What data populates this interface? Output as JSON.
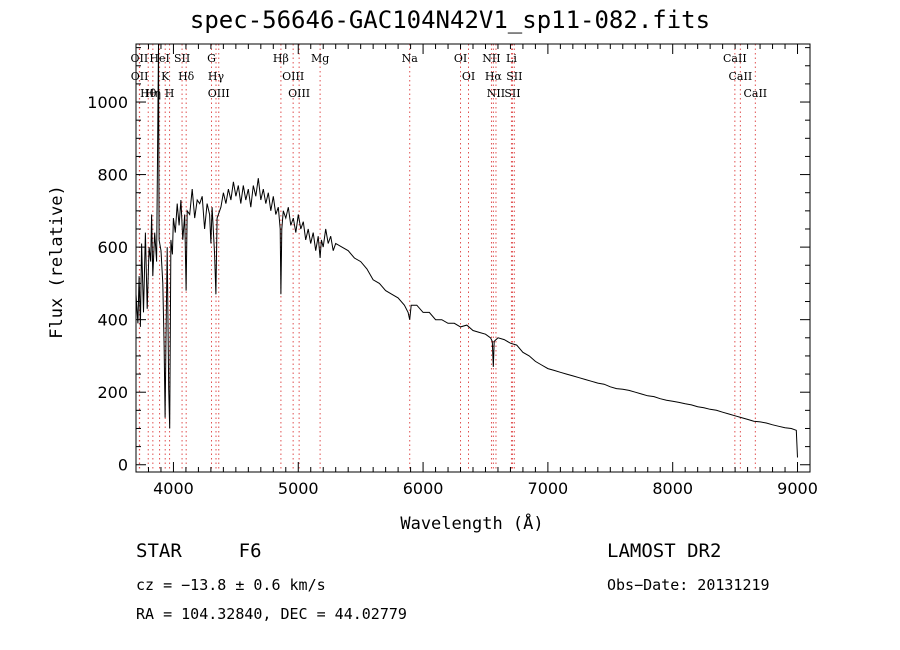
{
  "title": "spec-56646-GAC104N42V1_sp11-082.fits",
  "chart_data": {
    "type": "line",
    "xlabel": "Wavelength (Å)",
    "ylabel": "Flux (relative)",
    "xlim": [
      3700,
      9100
    ],
    "ylim": [
      -20,
      1160
    ],
    "xticks": [
      4000,
      5000,
      6000,
      7000,
      8000,
      9000
    ],
    "yticks": [
      0,
      200,
      400,
      600,
      800,
      1000
    ],
    "grid": false,
    "series": [
      {
        "points": [
          [
            3700,
            470
          ],
          [
            3715,
            390
          ],
          [
            3725,
            520
          ],
          [
            3735,
            380
          ],
          [
            3745,
            610
          ],
          [
            3760,
            420
          ],
          [
            3775,
            640
          ],
          [
            3790,
            430
          ],
          [
            3805,
            600
          ],
          [
            3818,
            560
          ],
          [
            3825,
            690
          ],
          [
            3835,
            520
          ],
          [
            3850,
            640
          ],
          [
            3865,
            560
          ],
          [
            3880,
            1160
          ],
          [
            3885,
            620
          ],
          [
            3900,
            590
          ],
          [
            3915,
            500
          ],
          [
            3925,
            330
          ],
          [
            3933,
            130
          ],
          [
            3940,
            350
          ],
          [
            3950,
            600
          ],
          [
            3962,
            210
          ],
          [
            3970,
            100
          ],
          [
            3980,
            620
          ],
          [
            3992,
            580
          ],
          [
            4000,
            680
          ],
          [
            4015,
            640
          ],
          [
            4030,
            720
          ],
          [
            4045,
            660
          ],
          [
            4060,
            730
          ],
          [
            4075,
            620
          ],
          [
            4090,
            690
          ],
          [
            4101,
            480
          ],
          [
            4110,
            700
          ],
          [
            4130,
            690
          ],
          [
            4150,
            760
          ],
          [
            4170,
            680
          ],
          [
            4190,
            730
          ],
          [
            4210,
            720
          ],
          [
            4230,
            740
          ],
          [
            4250,
            650
          ],
          [
            4270,
            720
          ],
          [
            4290,
            690
          ],
          [
            4300,
            610
          ],
          [
            4310,
            710
          ],
          [
            4330,
            580
          ],
          [
            4340,
            470
          ],
          [
            4350,
            680
          ],
          [
            4380,
            710
          ],
          [
            4400,
            750
          ],
          [
            4420,
            720
          ],
          [
            4440,
            760
          ],
          [
            4460,
            730
          ],
          [
            4480,
            780
          ],
          [
            4500,
            740
          ],
          [
            4520,
            770
          ],
          [
            4540,
            720
          ],
          [
            4560,
            770
          ],
          [
            4580,
            730
          ],
          [
            4600,
            760
          ],
          [
            4620,
            710
          ],
          [
            4640,
            770
          ],
          [
            4660,
            740
          ],
          [
            4680,
            790
          ],
          [
            4700,
            730
          ],
          [
            4720,
            760
          ],
          [
            4740,
            720
          ],
          [
            4760,
            750
          ],
          [
            4780,
            700
          ],
          [
            4800,
            740
          ],
          [
            4820,
            690
          ],
          [
            4840,
            710
          ],
          [
            4855,
            650
          ],
          [
            4861,
            470
          ],
          [
            4868,
            650
          ],
          [
            4880,
            700
          ],
          [
            4900,
            680
          ],
          [
            4920,
            710
          ],
          [
            4940,
            660
          ],
          [
            4960,
            680
          ],
          [
            4980,
            640
          ],
          [
            5000,
            690
          ],
          [
            5020,
            650
          ],
          [
            5040,
            670
          ],
          [
            5060,
            620
          ],
          [
            5080,
            650
          ],
          [
            5100,
            610
          ],
          [
            5120,
            640
          ],
          [
            5140,
            590
          ],
          [
            5160,
            630
          ],
          [
            5175,
            570
          ],
          [
            5185,
            620
          ],
          [
            5200,
            600
          ],
          [
            5220,
            650
          ],
          [
            5240,
            610
          ],
          [
            5260,
            630
          ],
          [
            5280,
            590
          ],
          [
            5300,
            610
          ],
          [
            5350,
            600
          ],
          [
            5400,
            590
          ],
          [
            5450,
            570
          ],
          [
            5500,
            560
          ],
          [
            5550,
            540
          ],
          [
            5600,
            510
          ],
          [
            5650,
            500
          ],
          [
            5700,
            480
          ],
          [
            5750,
            470
          ],
          [
            5800,
            460
          ],
          [
            5850,
            440
          ],
          [
            5880,
            420
          ],
          [
            5893,
            400
          ],
          [
            5905,
            440
          ],
          [
            5950,
            440
          ],
          [
            6000,
            420
          ],
          [
            6050,
            420
          ],
          [
            6100,
            400
          ],
          [
            6150,
            400
          ],
          [
            6200,
            390
          ],
          [
            6250,
            390
          ],
          [
            6300,
            380
          ],
          [
            6350,
            385
          ],
          [
            6400,
            370
          ],
          [
            6450,
            365
          ],
          [
            6500,
            360
          ],
          [
            6540,
            350
          ],
          [
            6555,
            340
          ],
          [
            6563,
            270
          ],
          [
            6570,
            340
          ],
          [
            6600,
            350
          ],
          [
            6650,
            345
          ],
          [
            6700,
            335
          ],
          [
            6750,
            330
          ],
          [
            6800,
            310
          ],
          [
            6850,
            300
          ],
          [
            6900,
            285
          ],
          [
            6950,
            275
          ],
          [
            7000,
            265
          ],
          [
            7050,
            260
          ],
          [
            7100,
            255
          ],
          [
            7150,
            250
          ],
          [
            7200,
            245
          ],
          [
            7250,
            240
          ],
          [
            7300,
            235
          ],
          [
            7350,
            230
          ],
          [
            7400,
            225
          ],
          [
            7450,
            222
          ],
          [
            7500,
            215
          ],
          [
            7550,
            210
          ],
          [
            7600,
            208
          ],
          [
            7650,
            205
          ],
          [
            7700,
            200
          ],
          [
            7750,
            195
          ],
          [
            7800,
            190
          ],
          [
            7850,
            188
          ],
          [
            7900,
            182
          ],
          [
            7950,
            178
          ],
          [
            8000,
            175
          ],
          [
            8050,
            172
          ],
          [
            8100,
            168
          ],
          [
            8150,
            165
          ],
          [
            8200,
            160
          ],
          [
            8250,
            157
          ],
          [
            8300,
            153
          ],
          [
            8350,
            150
          ],
          [
            8400,
            145
          ],
          [
            8450,
            140
          ],
          [
            8500,
            135
          ],
          [
            8550,
            130
          ],
          [
            8600,
            125
          ],
          [
            8650,
            120
          ],
          [
            8700,
            118
          ],
          [
            8750,
            115
          ],
          [
            8800,
            110
          ],
          [
            8850,
            106
          ],
          [
            8900,
            102
          ],
          [
            8950,
            100
          ],
          [
            8990,
            95
          ],
          [
            9000,
            20
          ]
        ]
      }
    ],
    "lines": [
      {
        "labels": [
          "Hθ"
        ],
        "x": 3798
      },
      {
        "labels": [
          "OII"
        ],
        "x": 3727
      },
      {
        "labels": [
          "OII"
        ],
        "x": 3729
      },
      {
        "labels": [
          "Hη"
        ],
        "x": 3835
      },
      {
        "labels": [
          "K"
        ],
        "x": 3934
      },
      {
        "labels": [
          "HeI"
        ],
        "x": 3889
      },
      {
        "labels": [
          "H"
        ],
        "x": 3969
      },
      {
        "labels": [
          "Hδ"
        ],
        "x": 4102
      },
      {
        "labels": [
          "SII"
        ],
        "x": 4069
      },
      {
        "labels": [
          "G"
        ],
        "x": 4305
      },
      {
        "labels": [
          "OIII"
        ],
        "x": 4363
      },
      {
        "labels": [
          "Hγ"
        ],
        "x": 4341
      },
      {
        "labels": [
          "Hβ"
        ],
        "x": 4861
      },
      {
        "labels": [
          "OIII"
        ],
        "x": 5007
      },
      {
        "labels": [
          "OIII"
        ],
        "x": 4959
      },
      {
        "labels": [
          "Mg"
        ],
        "x": 5175
      },
      {
        "labels": [
          "Na"
        ],
        "x": 5893
      },
      {
        "labels": [
          "OI"
        ],
        "x": 6300
      },
      {
        "labels": [
          "OI"
        ],
        "x": 6364
      },
      {
        "labels": [
          "Hα"
        ],
        "x": 6563
      },
      {
        "labels": [
          "NII"
        ],
        "x": 6548
      },
      {
        "labels": [
          "NII"
        ],
        "x": 6584
      },
      {
        "labels": [
          "SII"
        ],
        "x": 6716
      },
      {
        "labels": [
          "Li"
        ],
        "x": 6708
      },
      {
        "labels": [
          "SII"
        ],
        "x": 6731
      },
      {
        "labels": [
          "CaII"
        ],
        "x": 8542
      },
      {
        "labels": [
          "CaII"
        ],
        "x": 8498
      },
      {
        "labels": [
          "CaII"
        ],
        "x": 8662
      }
    ],
    "line_color": "#000000",
    "marker_color": "#e05050"
  },
  "info": {
    "class": "STAR",
    "subclass": "F6",
    "cz": "cz = −13.8 ± 0.6 km/s",
    "coords": "RA = 104.32840, DEC =  44.02779",
    "survey": "LAMOST DR2",
    "obsdate": "Obs−Date: 20131219"
  }
}
